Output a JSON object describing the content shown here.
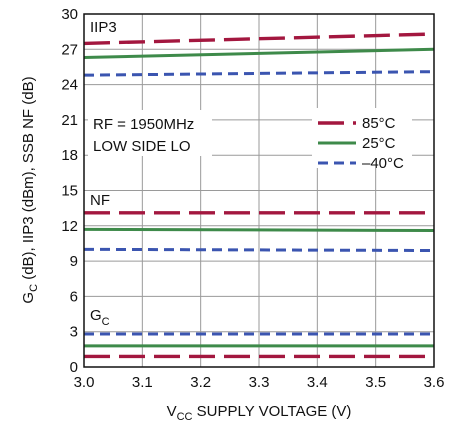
{
  "chart_data": {
    "type": "line",
    "xlabel_main": "V",
    "xlabel_sub": "CC",
    "xlabel_rest": " SUPPLY VOLTAGE (V)",
    "ylabel_main": "G",
    "ylabel_sub": "C",
    "ylabel_rest": " (dB), IIP3 (dBm), SSB NF (dB)",
    "xlim": [
      3.0,
      3.6
    ],
    "ylim": [
      0,
      30
    ],
    "x_ticks": [
      "3.0",
      "3.1",
      "3.2",
      "3.3",
      "3.4",
      "3.5",
      "3.6"
    ],
    "y_ticks": [
      "0",
      "3",
      "6",
      "9",
      "12",
      "15",
      "18",
      "21",
      "24",
      "27",
      "30"
    ],
    "grid": true,
    "annotations": {
      "iip3": "IIP3",
      "nf": "NF",
      "gc_main": "G",
      "gc_sub": "C",
      "condition_line1": "RF = 1950MHz",
      "condition_line2": "LOW SIDE LO"
    },
    "legend": {
      "placement": "right",
      "entries": [
        "85°C",
        "25°C",
        "–40°C"
      ]
    },
    "colors": {
      "85C": "#a3173f",
      "25C": "#3e8a4a",
      "-40C": "#3b55b0",
      "grid": "#9a9a9a",
      "axis": "#111111"
    },
    "series": [
      {
        "group": "IIP3",
        "temp": "85C",
        "x": [
          3.0,
          3.6
        ],
        "y": [
          27.5,
          28.3
        ]
      },
      {
        "group": "IIP3",
        "temp": "25C",
        "x": [
          3.0,
          3.6
        ],
        "y": [
          26.3,
          27.0
        ]
      },
      {
        "group": "IIP3",
        "temp": "-40C",
        "x": [
          3.0,
          3.6
        ],
        "y": [
          24.8,
          25.1
        ]
      },
      {
        "group": "NF",
        "temp": "85C",
        "x": [
          3.0,
          3.6
        ],
        "y": [
          13.1,
          13.1
        ]
      },
      {
        "group": "NF",
        "temp": "25C",
        "x": [
          3.0,
          3.6
        ],
        "y": [
          11.7,
          11.6
        ]
      },
      {
        "group": "NF",
        "temp": "-40C",
        "x": [
          3.0,
          3.6
        ],
        "y": [
          10.0,
          9.9
        ]
      },
      {
        "group": "GC",
        "temp": "-40C",
        "x": [
          3.0,
          3.6
        ],
        "y": [
          2.8,
          2.8
        ]
      },
      {
        "group": "GC",
        "temp": "25C",
        "x": [
          3.0,
          3.6
        ],
        "y": [
          1.8,
          1.8
        ]
      },
      {
        "group": "GC",
        "temp": "85C",
        "x": [
          3.0,
          3.6
        ],
        "y": [
          0.9,
          0.9
        ]
      }
    ]
  }
}
